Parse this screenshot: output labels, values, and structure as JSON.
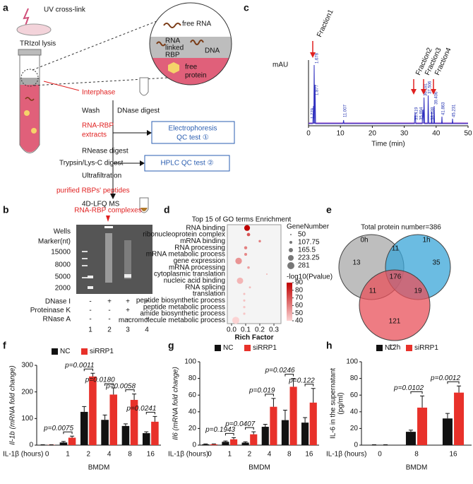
{
  "panels": {
    "a": {
      "letter": "a",
      "uv": "UV cross-link",
      "trizol": "TRIzol lysis",
      "free_rna": "free RNA",
      "rbp": [
        "RNA",
        "linked",
        "RBP"
      ],
      "dna": "DNA",
      "free_protein": [
        "free",
        "protein"
      ],
      "interphase": "Interphase",
      "wash": "Wash",
      "dnase": "DNase digest",
      "extracts": [
        "RNA-RBP",
        "extracts"
      ],
      "qc1": [
        "Electrophoresis",
        "QC test ①"
      ],
      "rnease": "RNease digest",
      "trypsin": "Trypsin/Lys-C digest",
      "qc2": "HPLC QC test ②",
      "ultra": "Ultrafiltration",
      "peptides": "purified RBPs' peptides",
      "ms": "4D-LFQ MS"
    },
    "b": {
      "letter": "b",
      "complexes": "RNA-RBP complexes",
      "wells": "Wells",
      "marker": "Marker(nt)",
      "markers": [
        15000,
        8000,
        5000,
        2000
      ],
      "rows": [
        {
          "name": "DNase I",
          "signs": [
            "-",
            "+",
            "+",
            "+"
          ]
        },
        {
          "name": "Proteinase K",
          "signs": [
            "-",
            "-",
            "+",
            "-"
          ]
        },
        {
          "name": "RNase A",
          "signs": [
            "-",
            "-",
            "-",
            "+"
          ]
        }
      ],
      "lanes": [
        1,
        2,
        3,
        4
      ]
    },
    "c": {
      "letter": "c",
      "y_label": "mAU",
      "x_label": "Time (min)",
      "xticks": [
        0,
        10,
        20,
        30,
        40,
        50
      ],
      "fractions": [
        "Fraction1",
        "Fraction2",
        "Fraction3",
        "Fraction4"
      ],
      "peaks": [
        "1.678",
        "1.877",
        "1.779",
        "11.007",
        "33.419",
        "35.894",
        "36.181",
        "37.506",
        "38.638",
        "39.406",
        "41.863",
        "45.231"
      ]
    },
    "e": {
      "letter": "e",
      "title": "Total protein number=386",
      "sets": [
        "0h",
        "1h",
        "12h"
      ],
      "regions": [
        13,
        11,
        35,
        176,
        11,
        19,
        121
      ]
    }
  },
  "chart_data": [
    {
      "type": "dot",
      "letter": "d",
      "title": "Top 15 of GO terms Enrichment",
      "x_label": "Rich Factor",
      "categories": [
        "RNA binding",
        "ribonucleoprotein complex",
        "mRNA binding",
        "RNA processing",
        "mRNA metabolic process",
        "gene expression",
        "mRNA processing",
        "cytoplasmic translation",
        "nucleic acid binding",
        "RNA splicing",
        "translation",
        "peptide biosynthetic process",
        "peptide metabolic process",
        "amide biosynthetic process",
        "macromolecule metabolic process"
      ],
      "values": [
        0.11,
        0.12,
        0.2,
        0.1,
        0.1,
        0.05,
        0.12,
        0.25,
        0.06,
        0.13,
        0.09,
        0.09,
        0.09,
        0.09,
        0.03
      ],
      "sizes": [
        230,
        130,
        90,
        120,
        110,
        260,
        95,
        50,
        250,
        75,
        80,
        82,
        85,
        84,
        281
      ],
      "pvalues": [
        90,
        70,
        60,
        60,
        58,
        55,
        52,
        48,
        47,
        46,
        45,
        44,
        43,
        43,
        40
      ],
      "xlim": [
        -0.03,
        0.35
      ],
      "xticks": [
        {
          "value": 0,
          "label": "0.0"
        },
        0.1,
        0.2,
        0.3
      ],
      "size_title": "GeneNumber",
      "size_legend": [
        50,
        107.75,
        165.5,
        223.25,
        281
      ],
      "color_title": "-log10(Pvalue)",
      "color_ticks": [
        90,
        80,
        70,
        60,
        50,
        40
      ],
      "color_low": "#fbd3d3",
      "color_high": "#c00000"
    },
    {
      "type": "bar",
      "letter": "f",
      "y_label": "Il-1b (mRNA fold change)",
      "x_label": "IL-1β (hours)",
      "group_label": "BMDM",
      "categories": [
        "0",
        "1",
        "2",
        "4",
        "8",
        "16"
      ],
      "ylim": [
        0,
        300
      ],
      "yticks": [
        0,
        100,
        200,
        300
      ],
      "series": [
        {
          "name": "NC",
          "color": "#111111",
          "values": [
            1,
            10,
            125,
            95,
            72,
            45
          ],
          "errors": [
            0.5,
            4,
            20,
            18,
            8,
            5
          ]
        },
        {
          "name": "siRRP1",
          "color": "#e8312a",
          "values": [
            1,
            28,
            258,
            190,
            170,
            88
          ],
          "errors": [
            0.5,
            6,
            12,
            25,
            22,
            20
          ]
        }
      ],
      "annotations": [
        null,
        "p=0.0075",
        "p=0.0011",
        "p=0.0180",
        "p=0.0058",
        "p=0.0241"
      ]
    },
    {
      "type": "bar",
      "letter": "g",
      "y_label": "Il6 (mRNA fold change)",
      "x_label": "IL-1β (hours)",
      "group_label": "BMDM",
      "categories": [
        "0",
        "1",
        "2",
        "4",
        "8",
        "16"
      ],
      "ylim": [
        0,
        100
      ],
      "yticks": [
        0,
        20,
        40,
        60,
        80,
        100
      ],
      "series": [
        {
          "name": "NC",
          "color": "#111111",
          "values": [
            1,
            4,
            3,
            22,
            30,
            27
          ],
          "errors": [
            0.5,
            1,
            1,
            3,
            12,
            6
          ]
        },
        {
          "name": "siRRP1",
          "color": "#e8312a",
          "values": [
            1,
            7,
            13,
            46,
            70,
            51
          ],
          "errors": [
            0.5,
            2,
            3,
            10,
            10,
            17
          ]
        }
      ],
      "annotations": [
        null,
        "p=0.1943",
        "p=0.0407",
        "p=0.019",
        "p=0.0246",
        "p=0.122"
      ]
    },
    {
      "type": "bar",
      "letter": "h",
      "y_label": [
        "IL-6 in the supernatant",
        "(pg/ml)"
      ],
      "x_label": "IL-1β (hours)",
      "group_label": "BMDM",
      "categories": [
        "0",
        "8",
        "16"
      ],
      "ylim": [
        0,
        100
      ],
      "yticks": [
        0,
        20,
        40,
        60,
        80,
        100
      ],
      "series": [
        {
          "name": "NC",
          "color": "#111111",
          "values": [
            0,
            16,
            32
          ],
          "errors": [
            0.5,
            2,
            6
          ]
        },
        {
          "name": "siRRP1",
          "color": "#e8312a",
          "values": [
            0,
            45,
            63
          ],
          "errors": [
            0.5,
            14,
            8
          ]
        }
      ],
      "annotations": [
        null,
        "p=0.0102",
        "p=0.0012"
      ]
    }
  ]
}
